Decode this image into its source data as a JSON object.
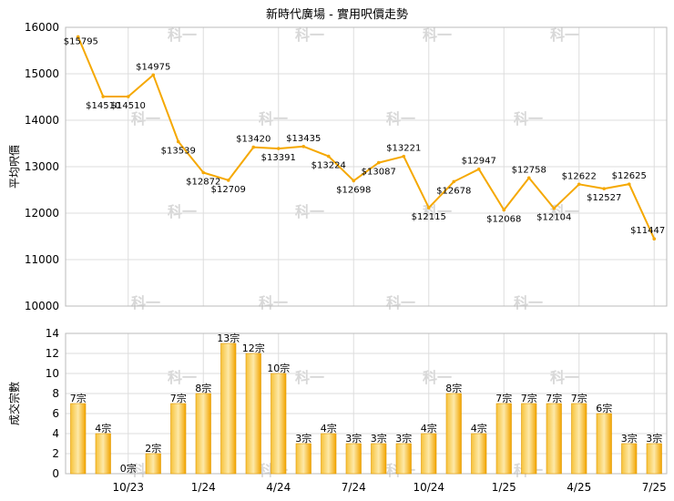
{
  "chart_data": [
    {
      "type": "line",
      "title": "新時代廣場 - 實用呎價走勢",
      "ylabel": "平均呎價",
      "ylim": [
        10000,
        16000
      ],
      "yticks": [
        10000,
        11000,
        12000,
        13000,
        14000,
        15000,
        16000
      ],
      "xtick_labels": [
        "10/23",
        "1/24",
        "4/24",
        "7/24",
        "10/24",
        "1/25",
        "4/25",
        "7/25"
      ],
      "grid": true,
      "line_color": "#f5a800",
      "values": [
        15795,
        14510,
        14510,
        14975,
        13539,
        12872,
        12709,
        13420,
        13391,
        13435,
        13224,
        12698,
        13087,
        13221,
        12115,
        12678,
        12947,
        12068,
        12758,
        12104,
        12622,
        12527,
        12625,
        11447
      ],
      "labels": [
        "$15795",
        "$14510",
        "$14510",
        "$14975",
        "$13539",
        "$12872",
        "$12709",
        "$13420",
        "$13391",
        "$13435",
        "$13224",
        "$12698",
        "$13087",
        "$13221",
        "$12115",
        "$12678",
        "$12947",
        "$12068",
        "$12758",
        "$12104",
        "$12622",
        "$12527",
        "$12625",
        "$11447"
      ]
    },
    {
      "type": "bar",
      "ylabel": "成交宗數",
      "ylim": [
        0,
        14
      ],
      "yticks": [
        0,
        2,
        4,
        6,
        8,
        10,
        12,
        14
      ],
      "xtick_labels": [
        "10/23",
        "1/24",
        "4/24",
        "7/24",
        "10/24",
        "1/25",
        "4/25",
        "7/25"
      ],
      "grid": true,
      "bar_color": "#f5a800",
      "values": [
        7,
        4,
        0,
        2,
        7,
        8,
        13,
        12,
        10,
        3,
        4,
        3,
        3,
        3,
        4,
        8,
        4,
        7,
        7,
        7,
        7,
        6,
        3,
        3
      ],
      "labels": [
        "7宗",
        "4宗",
        "0宗",
        "2宗",
        "7宗",
        "8宗",
        "13宗",
        "12宗",
        "10宗",
        "3宗",
        "4宗",
        "3宗",
        "3宗",
        "3宗",
        "4宗",
        "8宗",
        "4宗",
        "7宗",
        "7宗",
        "7宗",
        "7宗",
        "6宗",
        "3宗",
        "3宗"
      ]
    }
  ],
  "watermark": "科一"
}
